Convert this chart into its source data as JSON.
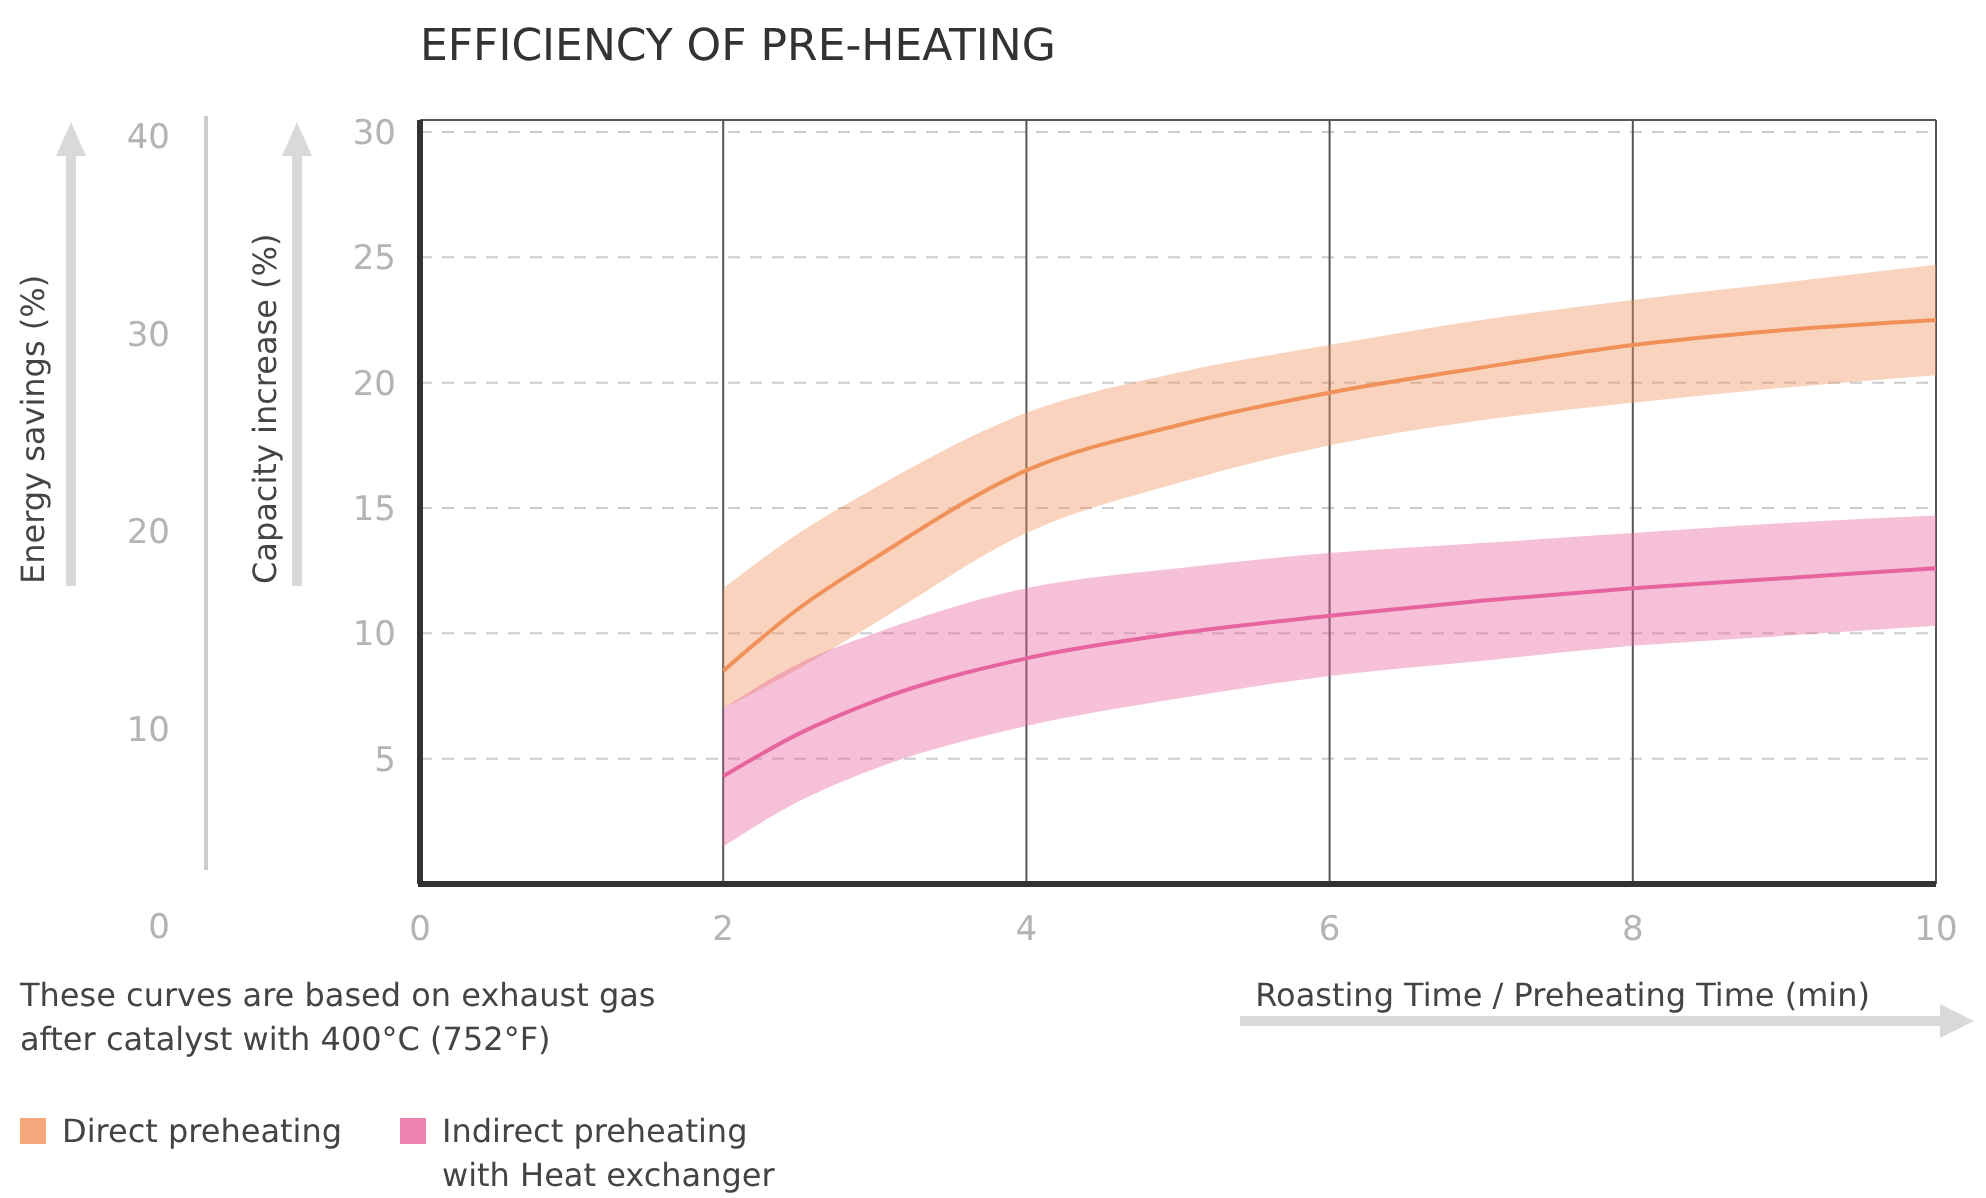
{
  "chart_data": {
    "type": "line",
    "title": "EFFICIENCY OF PRE-HEATING",
    "xlabel": "Roasting Time / Preheating Time (min)",
    "ylabel": "Capacity increase (%)",
    "y2label": "Energy savings (%)",
    "annotations": [
      "These curves are based on exhaust gas after catalyst with 400°C (752°F)"
    ],
    "x": [
      2,
      2.5,
      3,
      4,
      5,
      6,
      7,
      8,
      9,
      10
    ],
    "series": [
      {
        "name": "Direct preheating",
        "color": "#f0915a",
        "values": [
          8.5,
          11,
          13,
          16.5,
          18.3,
          19.6,
          20.6,
          21.5,
          22.1,
          22.5
        ],
        "lower": [
          7,
          8.6,
          10.4,
          14,
          16,
          17.5,
          18.5,
          19.2,
          19.8,
          20.3
        ],
        "upper": [
          11.8,
          14,
          15.8,
          18.8,
          20.4,
          21.5,
          22.5,
          23.3,
          24,
          24.7
        ]
      },
      {
        "name": "Indirect preheating with Heat exchanger",
        "color": "#e8649e",
        "values": [
          4.3,
          6,
          7.3,
          9,
          10,
          10.7,
          11.3,
          11.8,
          12.2,
          12.6
        ],
        "lower": [
          1.5,
          3.3,
          4.6,
          6.3,
          7.4,
          8.3,
          8.9,
          9.5,
          9.9,
          10.3
        ],
        "upper": [
          7,
          8.8,
          10,
          11.8,
          12.6,
          13.2,
          13.6,
          14,
          14.4,
          14.7
        ]
      }
    ],
    "xlim": [
      0,
      10
    ],
    "xticks": [
      0,
      2,
      4,
      6,
      8,
      10
    ],
    "ylim": [
      0,
      30
    ],
    "yticks": [
      5,
      10,
      15,
      20,
      25,
      30
    ],
    "y2lim": [
      0,
      40
    ],
    "y2ticks": [
      0,
      10,
      20,
      30,
      40
    ],
    "grid": true,
    "legend": "bottom left",
    "marker": "none",
    "line_style": "solid"
  }
}
